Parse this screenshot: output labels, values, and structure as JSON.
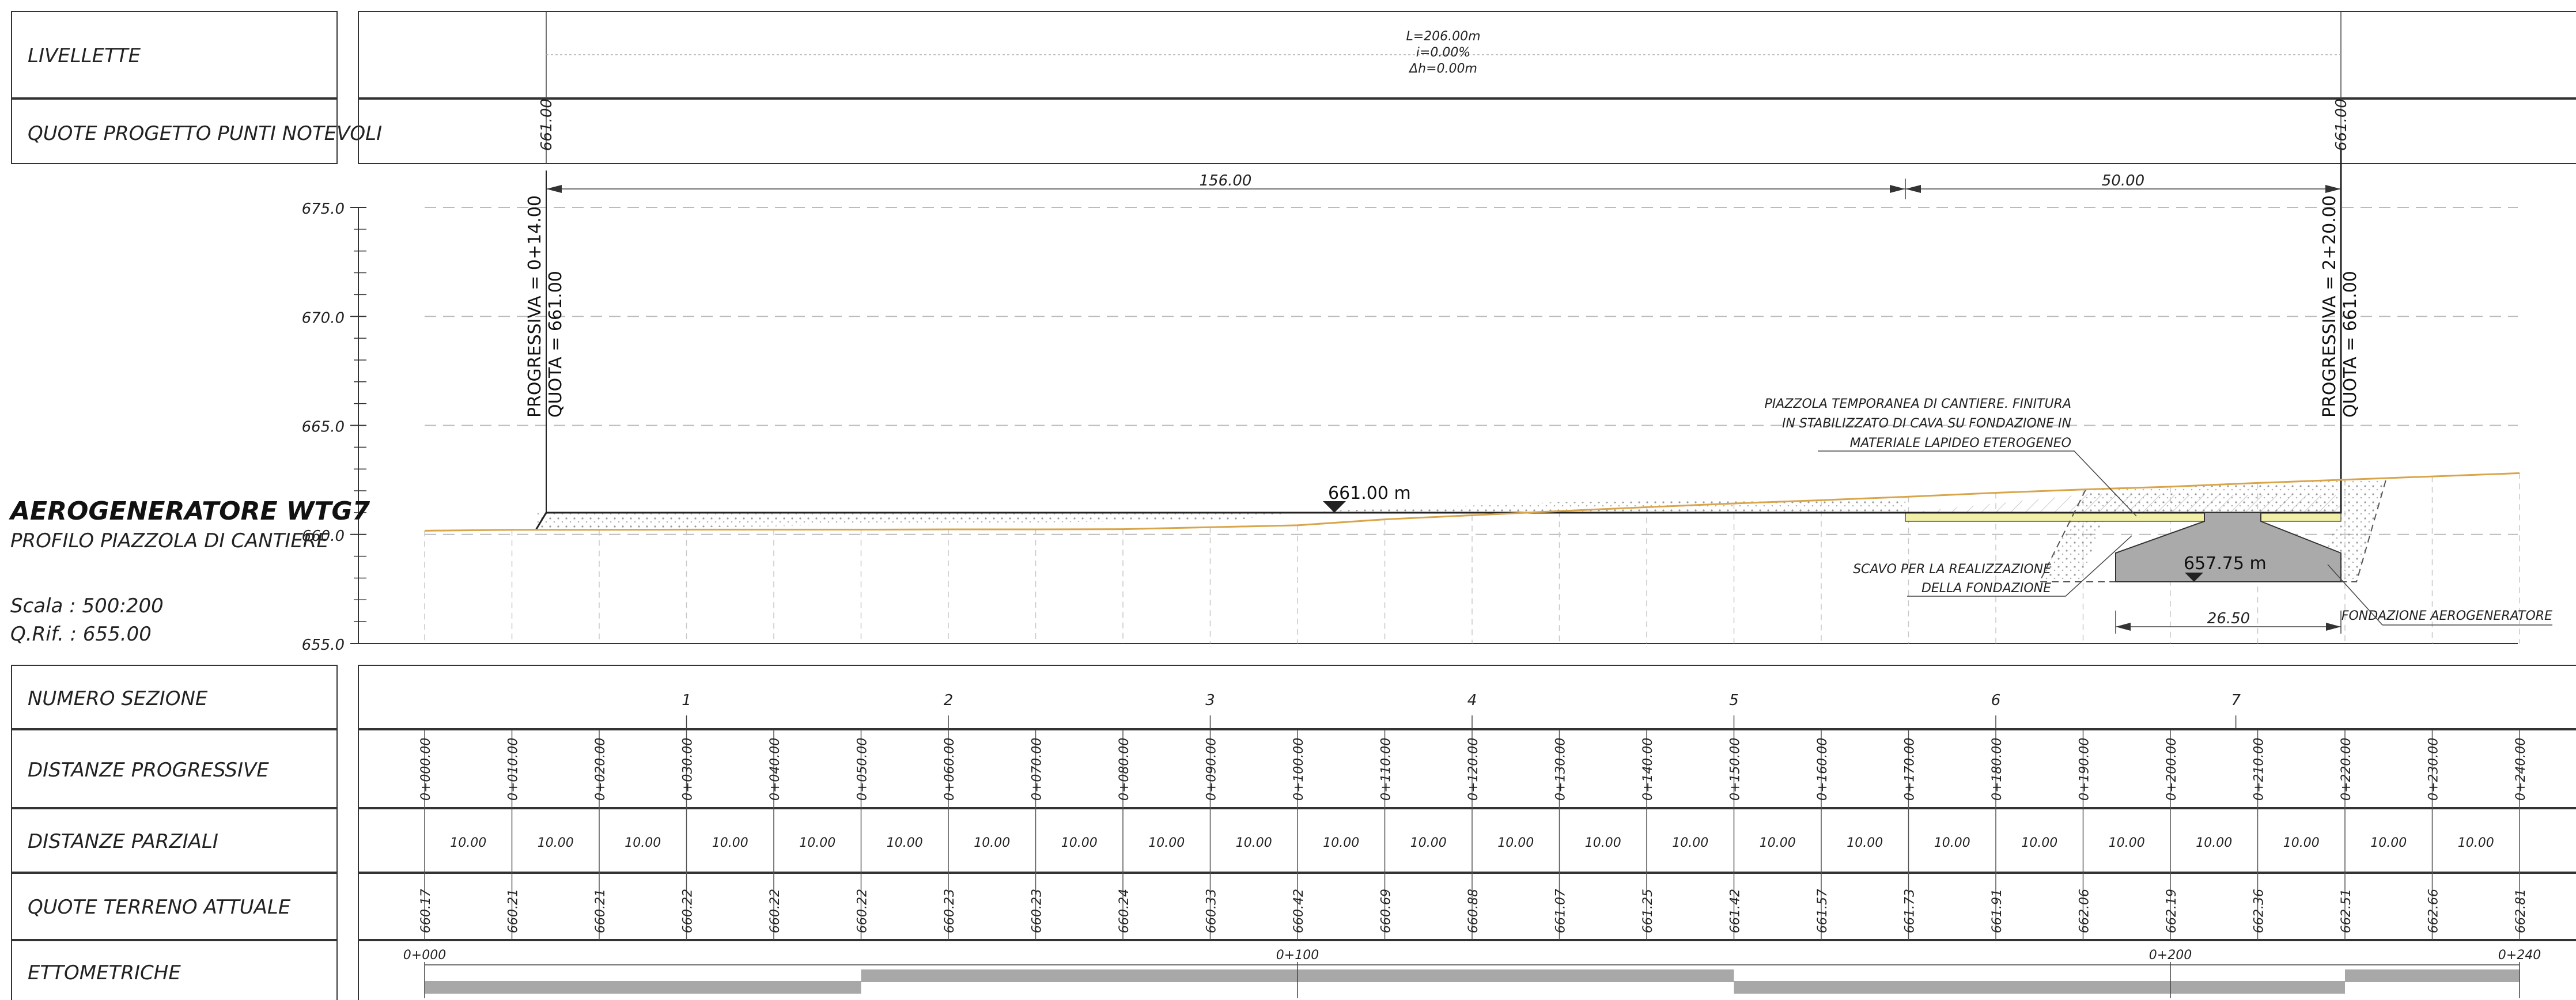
{
  "title_block": {
    "title": "AEROGENERATORE WTG7",
    "subtitle": "PROFILO PIAZZOLA DI CANTIERE",
    "scale": "Scala : 500:200",
    "ref": "Q.Rif. : 655.00"
  },
  "row_labels": {
    "livellette": "LIVELLETTE",
    "quote_progetto": "QUOTE PROGETTO PUNTI NOTEVOLI",
    "numero_sezione": "NUMERO SEZIONE",
    "distanze_progressive": "DISTANZE PROGRESSIVE",
    "distanze_parziali": "DISTANZE PARZIALI",
    "quote_terreno": "QUOTE TERRENO ATTUALE",
    "ettometriche": "ETTOMETRICHE"
  },
  "livelletta": {
    "length": "L=206.00m",
    "slope": "i=0.00%",
    "dh": "Δh=0.00m"
  },
  "quote_progetto_values": [
    "661.00",
    "661.00"
  ],
  "dimensions": {
    "first": "156.00",
    "second": "50.00",
    "foundation_width": "26.50"
  },
  "annotations": {
    "start_prog": "PROGRESSIVA = 0+14.00",
    "start_quota": "QUOTA = 661.00",
    "end_prog": "PROGRESSIVA = 2+20.00",
    "end_quota": "QUOTA = 661.00",
    "platform_level": "661.00 m",
    "foundation_level": "657.75 m",
    "piazzola_note": [
      "PIAZZOLA TEMPORANEA DI CANTIERE. FINITURA",
      "IN STABILIZZATO DI CAVA SU FONDAZIONE IN",
      "MATERIALE LAPIDEO ETEROGENEO"
    ],
    "scavo_note": [
      "SCAVO PER LA REALIZZAZIONE",
      "DELLA FONDAZIONE"
    ],
    "fondazione_note": "FONDAZIONE AEROGENERATORE"
  },
  "colors": {
    "ground_line": "#d9a54a",
    "platform_fill": "#f2f0a8",
    "foundation_fill": "#aaaaaa",
    "hatch_bar": "#a8a8a8"
  },
  "chart_data": {
    "type": "line",
    "x_unit": "m",
    "ylim": [
      655.0,
      675.0
    ],
    "y_ticks": [
      "675.0",
      "670.0",
      "665.0",
      "660.0",
      "655.0"
    ],
    "stations": [
      0,
      10,
      20,
      30,
      40,
      50,
      60,
      70,
      80,
      90,
      100,
      110,
      120,
      130,
      140,
      150,
      160,
      170,
      180,
      190,
      200,
      210,
      220,
      230,
      240
    ],
    "progressive_labels": [
      "0+000.00",
      "0+010.00",
      "0+020.00",
      "0+030.00",
      "0+040.00",
      "0+050.00",
      "0+060.00",
      "0+070.00",
      "0+080.00",
      "0+090.00",
      "0+100.00",
      "0+110.00",
      "0+120.00",
      "0+130.00",
      "0+140.00",
      "0+150.00",
      "0+160.00",
      "0+170.00",
      "0+180.00",
      "0+190.00",
      "0+200.00",
      "0+210.00",
      "0+220.00",
      "0+230.00",
      "0+240.00"
    ],
    "partial_distances": [
      "10.00",
      "10.00",
      "10.00",
      "10.00",
      "10.00",
      "10.00",
      "10.00",
      "10.00",
      "10.00",
      "10.00",
      "10.00",
      "10.00",
      "10.00",
      "10.00",
      "10.00",
      "10.00",
      "10.00",
      "10.00",
      "10.00",
      "10.00",
      "10.00",
      "10.00",
      "10.00",
      "10.00"
    ],
    "ground_elevations": [
      "660.17",
      "660.21",
      "660.21",
      "660.22",
      "660.22",
      "660.22",
      "660.23",
      "660.23",
      "660.24",
      "660.33",
      "660.42",
      "660.69",
      "660.88",
      "661.07",
      "661.25",
      "661.42",
      "661.57",
      "661.73",
      "661.91",
      "662.06",
      "662.19",
      "662.36",
      "662.51",
      "662.66",
      "662.81"
    ],
    "sections": [
      {
        "num": "1",
        "x": 30
      },
      {
        "num": "2",
        "x": 60
      },
      {
        "num": "3",
        "x": 90
      },
      {
        "num": "4",
        "x": 120
      },
      {
        "num": "5",
        "x": 150
      },
      {
        "num": "6",
        "x": 180
      },
      {
        "num": "7",
        "x": 207.5
      }
    ],
    "ettometriche": [
      {
        "label": "0+000",
        "x": 0
      },
      {
        "label": "0+100",
        "x": 100
      },
      {
        "label": "0+200",
        "x": 200
      },
      {
        "label": "0+240",
        "x": 240
      }
    ]
  }
}
